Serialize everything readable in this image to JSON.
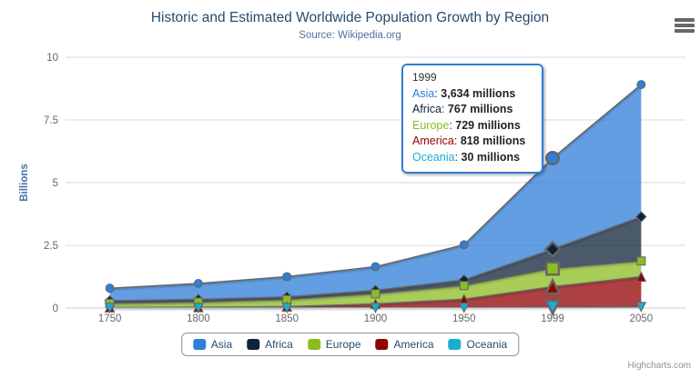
{
  "header": {
    "title": "Historic and Estimated Worldwide Population Growth by Region",
    "subtitle": "Source: Wikipedia.org",
    "menu_icon": "hamburger-icon"
  },
  "chart_data": {
    "type": "area",
    "stacking": "normal",
    "categories": [
      "1750",
      "1800",
      "1850",
      "1900",
      "1950",
      "1999",
      "2050"
    ],
    "series": [
      {
        "name": "Asia",
        "color": "#2f7ed8",
        "marker": "circle",
        "values": [
          502,
          635,
          809,
          947,
          1402,
          3634,
          5268
        ]
      },
      {
        "name": "Africa",
        "color": "#0d233a",
        "marker": "diamond",
        "values": [
          106,
          107,
          111,
          133,
          221,
          767,
          1766
        ]
      },
      {
        "name": "Europe",
        "color": "#8bbc21",
        "marker": "square",
        "values": [
          163,
          203,
          276,
          408,
          547,
          729,
          628
        ]
      },
      {
        "name": "America",
        "color": "#910000",
        "marker": "triangle",
        "values": [
          18,
          31,
          54,
          156,
          339,
          818,
          1201
        ]
      },
      {
        "name": "Oceania",
        "color": "#1aadce",
        "marker": "triangle-down",
        "values": [
          2,
          2,
          2,
          6,
          13,
          30,
          46
        ]
      }
    ],
    "values_unit": "millions",
    "ylabel": "Billions",
    "ylim": [
      0,
      10
    ],
    "yticks": [
      0,
      2.5,
      5,
      7.5,
      10
    ],
    "grid": true,
    "legend_position": "bottom",
    "hover_index": 5,
    "line_color": "#666666",
    "grid_color": "#d8d8d8",
    "axis_line_color": "#c0d0e0",
    "fill_opacity": 0.75
  },
  "tooltip": {
    "header": "1999",
    "sep": ":",
    "border_color": "#2f7ed8",
    "rows": [
      {
        "name": "Asia",
        "value": "3,634 millions"
      },
      {
        "name": "Africa",
        "value": "767 millions"
      },
      {
        "name": "Europe",
        "value": "729 millions"
      },
      {
        "name": "America",
        "value": "818 millions"
      },
      {
        "name": "Oceania",
        "value": "30 millions"
      }
    ]
  },
  "credits": {
    "label": "Highcharts.com"
  }
}
